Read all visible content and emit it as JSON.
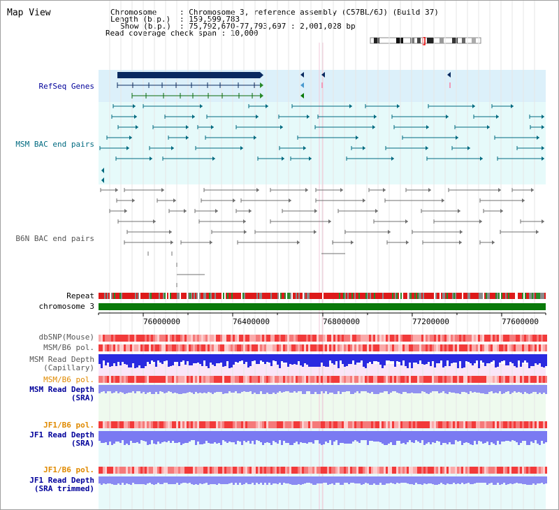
{
  "title": "Map View",
  "info": {
    "chromosome_key": "Chromosome",
    "chromosome_value": ": Chromosome 3, reference assembly (C57BL/6J) (Build 37)",
    "length_key": "Length (b.p.)",
    "length_value": ": 159,599,783",
    "show_key": "Show (b.p.)",
    "show_value": ": 75,792,670-77,793,697 : 2,001,028 bp",
    "coverage": "Read coverage check span : 10,000"
  },
  "tracks": {
    "refseq": "RefSeq Genes",
    "msm_bac": "MSM BAC end pairs",
    "b6n_bac": "B6N BAC end pairs",
    "repeat": "Repeat",
    "chromosome": "chromosome 3",
    "dbsnp": "dbSNP(Mouse)",
    "msm_b6_pol_1": "MSM/B6 pol.",
    "msm_read_depth_cap_1": "MSM Read Depth",
    "msm_read_depth_cap_2": "(Capillary)",
    "msm_b6_pol_2": "MSM/B6 pol.",
    "msm_read_depth_sra_1": "MSM Read Depth",
    "msm_read_depth_sra_2": "(SRA)",
    "jf1_b6_pol_1": "JF1/B6 pol.",
    "jf1_read_depth_sra_1": "JF1 Read Depth",
    "jf1_read_depth_sra_2": "(SRA)",
    "jf1_b6_pol_2": "JF1/B6 pol.",
    "jf1_read_depth_trim_1": "JF1 Read Depth",
    "jf1_read_depth_trim_2": "(SRA trimmed)"
  },
  "axis_ticks": [
    "76000000",
    "76400000",
    "76800000",
    "77200000",
    "77600000"
  ],
  "colors": {
    "refseq_bg": "#dcf0fa",
    "msm_bac_bg": "#e6fafa",
    "msm_bac_line": "#006a80",
    "b6n_line": "#707070",
    "repeat_red": "#dd1a1a",
    "chromosome_green": "#0a7a0a",
    "gene_navy": "#0a2a60",
    "depth_blue": "#2a2ae0",
    "depth_blue_light": "#9090f0",
    "label_navy": "#00009a",
    "label_teal": "#006a80",
    "label_orange": "#e08a00",
    "label_gray": "#555555"
  }
}
